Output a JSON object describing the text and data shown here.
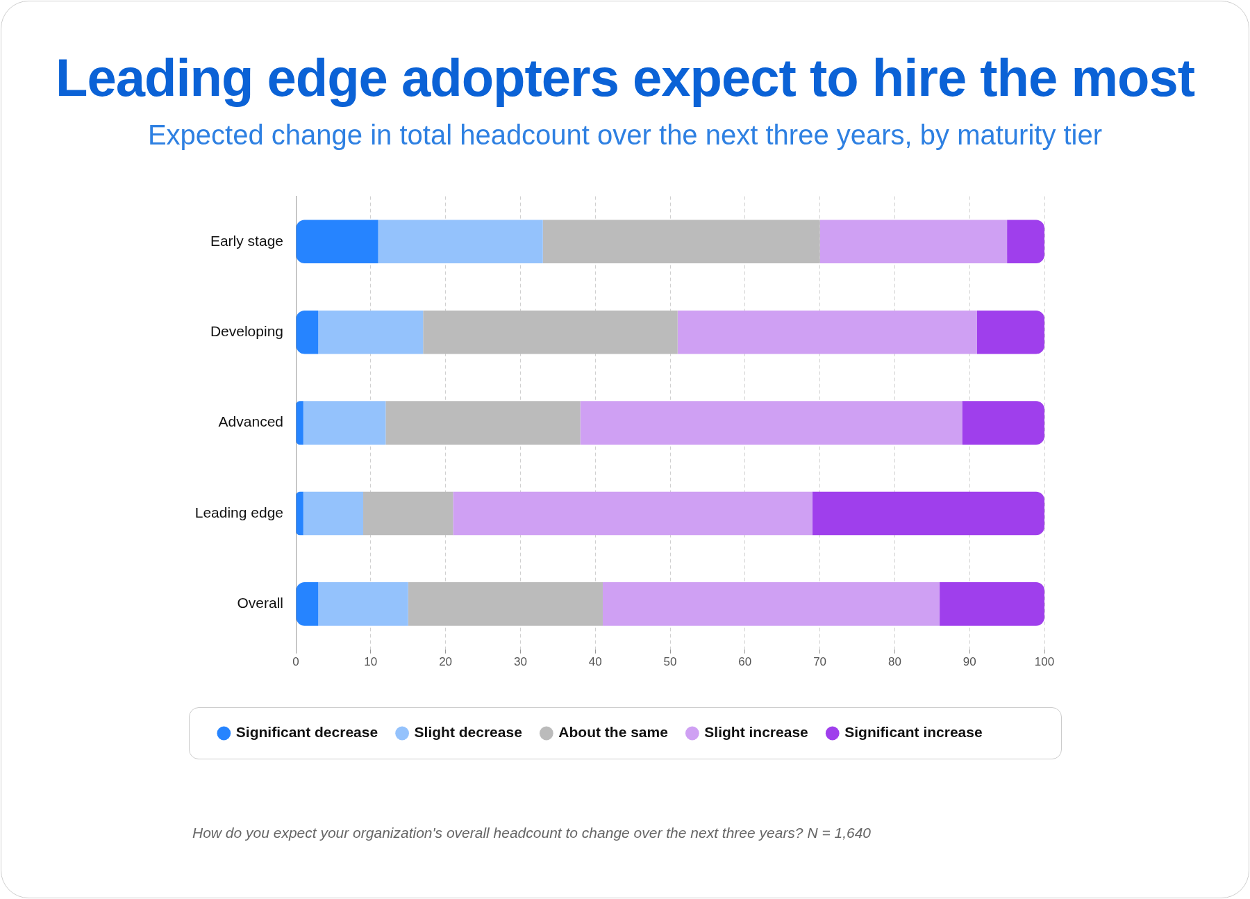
{
  "chart_data": {
    "type": "bar",
    "orientation": "horizontal",
    "stacked": true,
    "title": "Leading edge adopters expect to hire the most",
    "subtitle": "Expected change in total headcount over the next three years, by maturity tier",
    "categories": [
      "Early stage",
      "Developing",
      "Advanced",
      "Leading edge",
      "Overall"
    ],
    "series": [
      {
        "name": "Significant decrease",
        "color": "#2684ff",
        "values": [
          11,
          3,
          1,
          1,
          3
        ]
      },
      {
        "name": "Slight decrease",
        "color": "#94c2fc",
        "values": [
          22,
          14,
          11,
          8,
          12
        ]
      },
      {
        "name": "About the same",
        "color": "#bbbbbb",
        "values": [
          37,
          34,
          26,
          12,
          26
        ]
      },
      {
        "name": "Slight increase",
        "color": "#cfa0f3",
        "values": [
          25,
          40,
          51,
          48,
          45
        ]
      },
      {
        "name": "Significant increase",
        "color": "#9f3fec",
        "values": [
          5,
          9,
          11,
          31,
          14
        ]
      }
    ],
    "xlim": [
      0,
      100
    ],
    "xticks": [
      0,
      10,
      20,
      30,
      40,
      50,
      60,
      70,
      80,
      90,
      100
    ],
    "grid": "x",
    "legend": "bottom",
    "annotations": [
      "How do you expect your organization's overall headcount to change over the next three years? N = 1,640"
    ]
  }
}
